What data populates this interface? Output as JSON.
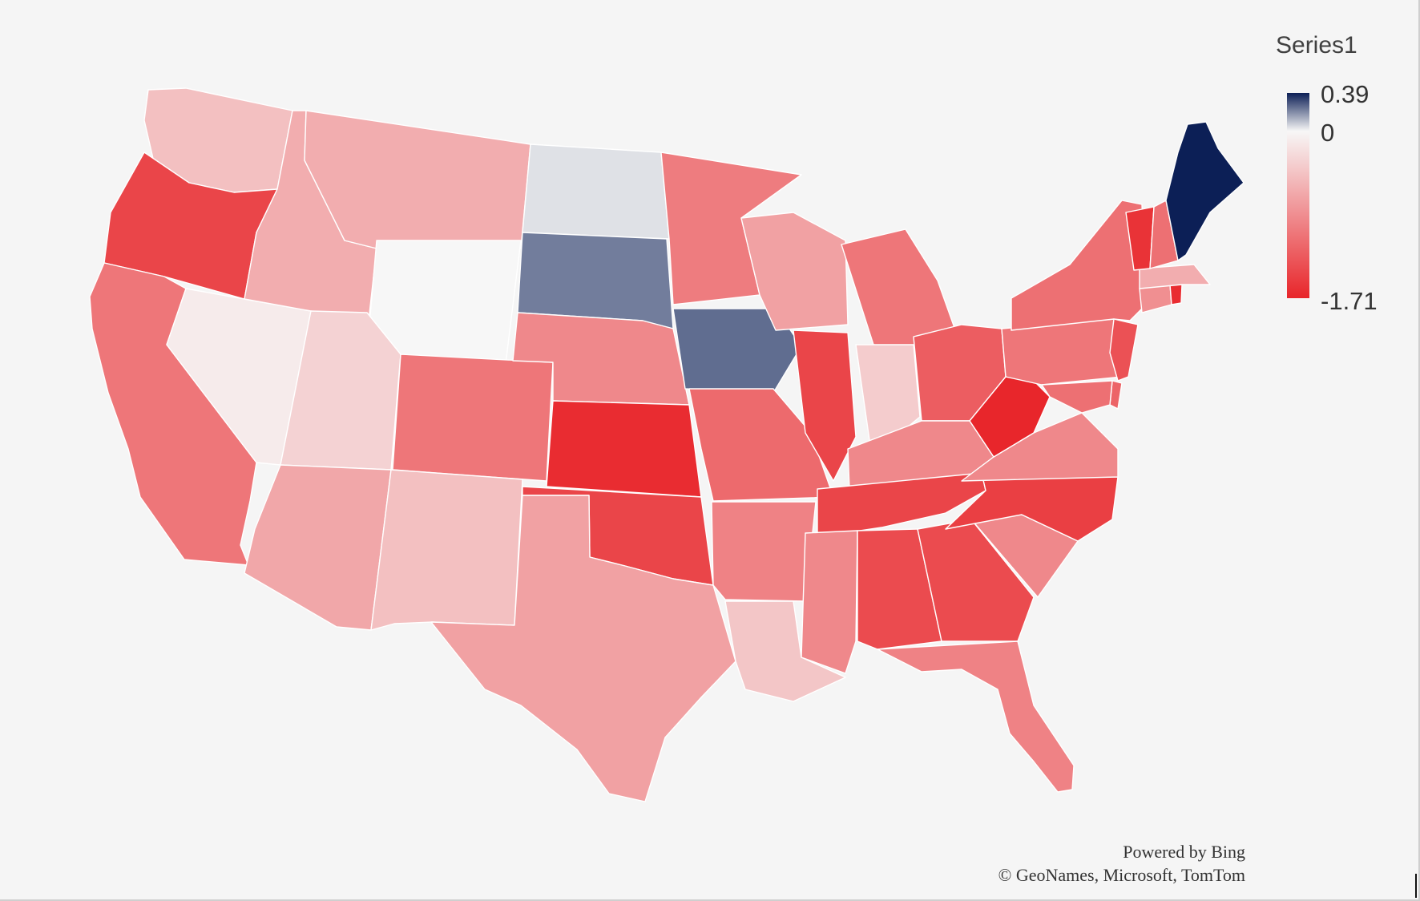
{
  "legend": {
    "title": "Series1",
    "max_label": "0.39",
    "zero_label": "0",
    "min_label": "-1.71",
    "max_value": 0.39,
    "min_value": -1.71,
    "colors": {
      "max": "#0c1f56",
      "zero": "#f7f7f7",
      "min": "#e8252a"
    }
  },
  "credits": {
    "line1": "Powered by Bing",
    "line2": "© GeoNames, Microsoft, TomTom"
  },
  "map": {
    "background": "#f5f5f5",
    "border_color": "#ffffff",
    "states": [
      {
        "name": "Washington",
        "value": -0.45
      },
      {
        "name": "Oregon",
        "value": -1.45
      },
      {
        "name": "California",
        "value": -1.05
      },
      {
        "name": "Nevada",
        "value": -0.1
      },
      {
        "name": "Idaho",
        "value": -0.6
      },
      {
        "name": "Montana",
        "value": -0.6
      },
      {
        "name": "Wyoming",
        "value": 0.0
      },
      {
        "name": "Utah",
        "value": -0.3
      },
      {
        "name": "Arizona",
        "value": -0.65
      },
      {
        "name": "Colorado",
        "value": -1.05
      },
      {
        "name": "New Mexico",
        "value": -0.45
      },
      {
        "name": "North Dakota",
        "value": 0.04
      },
      {
        "name": "South Dakota",
        "value": 0.22
      },
      {
        "name": "Nebraska",
        "value": -0.9
      },
      {
        "name": "Kansas",
        "value": -1.65
      },
      {
        "name": "Oklahoma",
        "value": -1.45
      },
      {
        "name": "Texas",
        "value": -0.7
      },
      {
        "name": "Minnesota",
        "value": -1.0
      },
      {
        "name": "Iowa",
        "value": 0.25
      },
      {
        "name": "Missouri",
        "value": -1.15
      },
      {
        "name": "Arkansas",
        "value": -0.95
      },
      {
        "name": "Louisiana",
        "value": -0.4
      },
      {
        "name": "Wisconsin",
        "value": -0.7
      },
      {
        "name": "Illinois",
        "value": -1.45
      },
      {
        "name": "Michigan",
        "value": -1.05
      },
      {
        "name": "Indiana",
        "value": -0.35
      },
      {
        "name": "Ohio",
        "value": -1.25
      },
      {
        "name": "Kentucky",
        "value": -0.9
      },
      {
        "name": "Tennessee",
        "value": -1.45
      },
      {
        "name": "Mississippi",
        "value": -0.9
      },
      {
        "name": "Alabama",
        "value": -1.4
      },
      {
        "name": "Georgia",
        "value": -1.4
      },
      {
        "name": "Florida",
        "value": -0.95
      },
      {
        "name": "South Carolina",
        "value": -0.9
      },
      {
        "name": "North Carolina",
        "value": -1.5
      },
      {
        "name": "Virginia",
        "value": -0.9
      },
      {
        "name": "West Virginia",
        "value": -1.7
      },
      {
        "name": "Pennsylvania",
        "value": -1.05
      },
      {
        "name": "New York",
        "value": -1.1
      },
      {
        "name": "New Jersey",
        "value": -1.35
      },
      {
        "name": "Delaware",
        "value": -1.2
      },
      {
        "name": "Maryland",
        "value": -1.1
      },
      {
        "name": "Connecticut",
        "value": -0.85
      },
      {
        "name": "Rhode Island",
        "value": -1.65
      },
      {
        "name": "Massachusetts",
        "value": -0.6
      },
      {
        "name": "Vermont",
        "value": -1.6
      },
      {
        "name": "New Hampshire",
        "value": -1.1
      },
      {
        "name": "Maine",
        "value": 0.39
      }
    ]
  }
}
